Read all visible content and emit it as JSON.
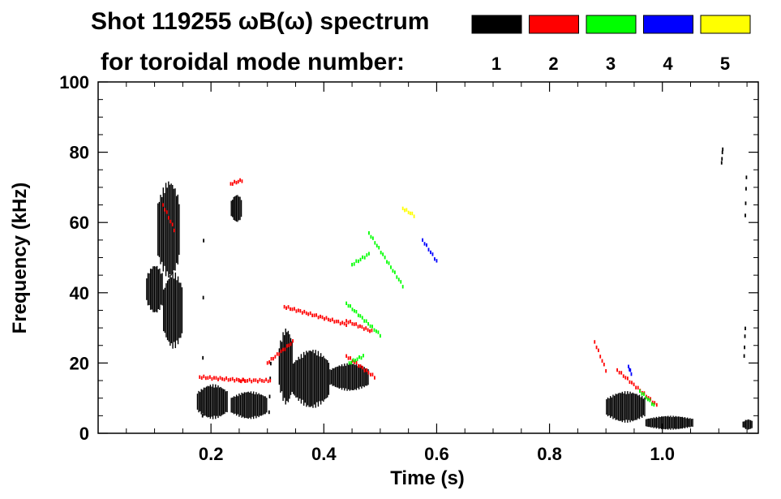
{
  "chart_data": {
    "type": "scatter",
    "title_line1": "Shot 119255 ωB(ω) spectrum",
    "title_line2": "for toroidal mode number:",
    "xlabel": "Time (s)",
    "ylabel": "Frequency (kHz)",
    "xlim": [
      0.0,
      1.17
    ],
    "ylim": [
      0,
      100
    ],
    "x_ticks": [
      0.2,
      0.4,
      0.6,
      0.8,
      1.0
    ],
    "x_tick_labels": [
      "0.2",
      "0.4",
      "0.6",
      "0.8",
      "1.0"
    ],
    "y_ticks": [
      0,
      20,
      40,
      60,
      80,
      100
    ],
    "y_tick_labels": [
      "0",
      "20",
      "40",
      "60",
      "80",
      "100"
    ],
    "legend_position": "top-right",
    "legend": [
      {
        "label": "1",
        "color": "#000000"
      },
      {
        "label": "2",
        "color": "#ff0000"
      },
      {
        "label": "3",
        "color": "#00ff00"
      },
      {
        "label": "4",
        "color": "#0000ff"
      },
      {
        "label": "5",
        "color": "#ffff00"
      }
    ],
    "series": [
      {
        "name": "1",
        "color": "#000000",
        "blobs": [
          {
            "t0": 0.085,
            "t1": 0.115,
            "f0": 34,
            "f1": 48
          },
          {
            "t0": 0.105,
            "t1": 0.145,
            "f0": 44,
            "f1": 72
          },
          {
            "t0": 0.115,
            "t1": 0.15,
            "f0": 24,
            "f1": 46
          },
          {
            "t0": 0.175,
            "t1": 0.23,
            "f0": 4,
            "f1": 14
          },
          {
            "t0": 0.235,
            "t1": 0.3,
            "f0": 4,
            "f1": 12
          },
          {
            "t0": 0.235,
            "t1": 0.255,
            "f0": 60,
            "f1": 68
          },
          {
            "t0": 0.32,
            "t1": 0.345,
            "f0": 8,
            "f1": 30
          },
          {
            "t0": 0.345,
            "t1": 0.41,
            "f0": 7,
            "f1": 24
          },
          {
            "t0": 0.41,
            "t1": 0.48,
            "f0": 12,
            "f1": 20
          },
          {
            "t0": 0.9,
            "t1": 0.97,
            "f0": 3,
            "f1": 12
          },
          {
            "t0": 0.97,
            "t1": 1.055,
            "f0": 1,
            "f1": 5
          },
          {
            "t0": 1.142,
            "t1": 1.16,
            "f0": 1,
            "f1": 4
          }
        ],
        "lines": [
          {
            "t": [
              0.185,
              0.187
            ],
            "f": [
              5,
              55
            ]
          },
          {
            "t": [
              0.303,
              0.306
            ],
            "f": [
              6,
              20
            ]
          },
          {
            "t": [
              1.147,
              1.149
            ],
            "f": [
              62,
              73
            ]
          },
          {
            "t": [
              1.145,
              1.147
            ],
            "f": [
              22,
              30
            ]
          },
          {
            "t": [
              1.105,
              1.107
            ],
            "f": [
              77,
              81
            ]
          }
        ]
      },
      {
        "name": "2",
        "color": "#ff0000",
        "lines": [
          {
            "t": [
              0.115,
              0.135
            ],
            "f": [
              65,
              58
            ]
          },
          {
            "t": [
              0.18,
              0.26
            ],
            "f": [
              16,
              15
            ]
          },
          {
            "t": [
              0.25,
              0.305
            ],
            "f": [
              15,
              15
            ]
          },
          {
            "t": [
              0.3,
              0.345
            ],
            "f": [
              20,
              26
            ]
          },
          {
            "t": [
              0.33,
              0.44
            ],
            "f": [
              36,
              31
            ]
          },
          {
            "t": [
              0.44,
              0.485
            ],
            "f": [
              32,
              29
            ]
          },
          {
            "t": [
              0.44,
              0.49
            ],
            "f": [
              22,
              16
            ]
          },
          {
            "t": [
              0.235,
              0.255
            ],
            "f": [
              71,
              72
            ]
          },
          {
            "t": [
              0.88,
              0.9
            ],
            "f": [
              26,
              18
            ]
          },
          {
            "t": [
              0.92,
              0.99
            ],
            "f": [
              18,
              8
            ]
          }
        ]
      },
      {
        "name": "3",
        "color": "#00ff00",
        "lines": [
          {
            "t": [
              0.44,
              0.5
            ],
            "f": [
              37,
              28
            ]
          },
          {
            "t": [
              0.45,
              0.48
            ],
            "f": [
              48,
              51
            ]
          },
          {
            "t": [
              0.48,
              0.54
            ],
            "f": [
              57,
              42
            ]
          },
          {
            "t": [
              0.445,
              0.47
            ],
            "f": [
              20,
              22
            ]
          },
          {
            "t": [
              0.96,
              0.985
            ],
            "f": [
              12,
              8
            ]
          }
        ]
      },
      {
        "name": "4",
        "color": "#0000ff",
        "lines": [
          {
            "t": [
              0.575,
              0.6
            ],
            "f": [
              55,
              49
            ]
          },
          {
            "t": [
              0.94,
              0.945
            ],
            "f": [
              19,
              17
            ]
          }
        ]
      },
      {
        "name": "5",
        "color": "#ffff00",
        "lines": [
          {
            "t": [
              0.54,
              0.56
            ],
            "f": [
              64,
              62
            ]
          }
        ]
      }
    ]
  }
}
